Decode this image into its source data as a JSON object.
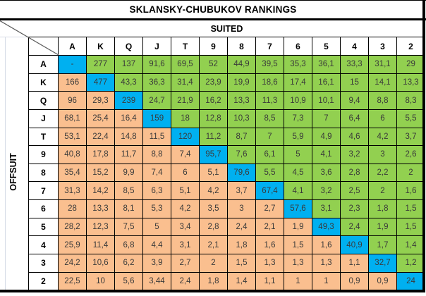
{
  "title": "SKLANSKY-CHUBUKOV RANKINGS",
  "axis": {
    "suited": "SUITED",
    "offsuit": "OFFSUIT"
  },
  "colors": {
    "suited_green": "#92D050",
    "offsuit_orange": "#FABF8F",
    "pair_blue": "#00B0F0",
    "border": "#000000",
    "faint_gridline": "#d6dce6"
  },
  "chart_data": {
    "type": "heatmap",
    "title": "SKLANSKY-CHUBUKOV RANKINGS",
    "x_axis_label": "SUITED",
    "y_axis_label": "OFFSUIT",
    "columns": [
      "A",
      "K",
      "Q",
      "J",
      "T",
      "9",
      "8",
      "7",
      "6",
      "5",
      "4",
      "3",
      "2"
    ],
    "rows": [
      "A",
      "K",
      "Q",
      "J",
      "T",
      "9",
      "8",
      "7",
      "6",
      "5",
      "4",
      "3",
      "2"
    ],
    "values": [
      [
        "-",
        "277",
        "137",
        "91,6",
        "69,5",
        "52",
        "44,9",
        "39,5",
        "35,3",
        "36,1",
        "33,3",
        "31,1",
        "29"
      ],
      [
        "166",
        "477",
        "43,3",
        "36,3",
        "31,4",
        "23,9",
        "19,9",
        "18,6",
        "17,4",
        "16,1",
        "15",
        "14,1",
        "13,3"
      ],
      [
        "96",
        "29,3",
        "239",
        "24,7",
        "21,9",
        "16,2",
        "13,3",
        "11,3",
        "10,9",
        "10,1",
        "9,4",
        "8,8",
        "8,3"
      ],
      [
        "68,1",
        "25,4",
        "16,4",
        "159",
        "18",
        "12,8",
        "10,3",
        "8,5",
        "7,3",
        "7",
        "6,4",
        "6",
        "5,5"
      ],
      [
        "53,1",
        "22,4",
        "14,8",
        "11,5",
        "120",
        "11,2",
        "8,7",
        "7",
        "5,9",
        "4,9",
        "4,6",
        "4,2",
        "3,7"
      ],
      [
        "40,8",
        "17,8",
        "11,7",
        "8,8",
        "7,4",
        "95,7",
        "7,6",
        "6,1",
        "5",
        "4,1",
        "3,2",
        "3",
        "2,6"
      ],
      [
        "35,4",
        "15,2",
        "9,9",
        "7,4",
        "6",
        "5,1",
        "79,6",
        "5,5",
        "4,5",
        "3,6",
        "2,8",
        "2,2",
        "2"
      ],
      [
        "31,3",
        "14,2",
        "8,5",
        "6,3",
        "5,1",
        "4,2",
        "3,7",
        "67,4",
        "4,1",
        "3,2",
        "2,5",
        "2",
        "1,6"
      ],
      [
        "28",
        "13,3",
        "8,1",
        "5,3",
        "4,2",
        "3,5",
        "3",
        "2,7",
        "57,6",
        "3,1",
        "2,3",
        "1,8",
        "1,5"
      ],
      [
        "28,2",
        "12,3",
        "7,5",
        "5",
        "3,4",
        "2,8",
        "2,4",
        "2,1",
        "1,9",
        "49,3",
        "2,4",
        "1,9",
        "1,5"
      ],
      [
        "25,9",
        "11,4",
        "6,8",
        "4,4",
        "3,1",
        "2,1",
        "1,8",
        "1,6",
        "1,5",
        "1,6",
        "40,9",
        "1,7",
        "1,4"
      ],
      [
        "24,2",
        "10,6",
        "6,2",
        "3,9",
        "2,7",
        "2",
        "1,5",
        "1,3",
        "1,3",
        "1,3",
        "1,1",
        "32,7",
        "1,2"
      ],
      [
        "22,5",
        "10",
        "5,6",
        "3,44",
        "2,4",
        "1,8",
        "1,4",
        "1,1",
        "1",
        "1",
        "0,9",
        "0,9",
        "24"
      ]
    ],
    "cell_color_rule": {
      "above_diagonal_suited": "#92D050",
      "below_diagonal_offsuit": "#FABF8F",
      "diagonal_pairs": "#00B0F0"
    }
  }
}
